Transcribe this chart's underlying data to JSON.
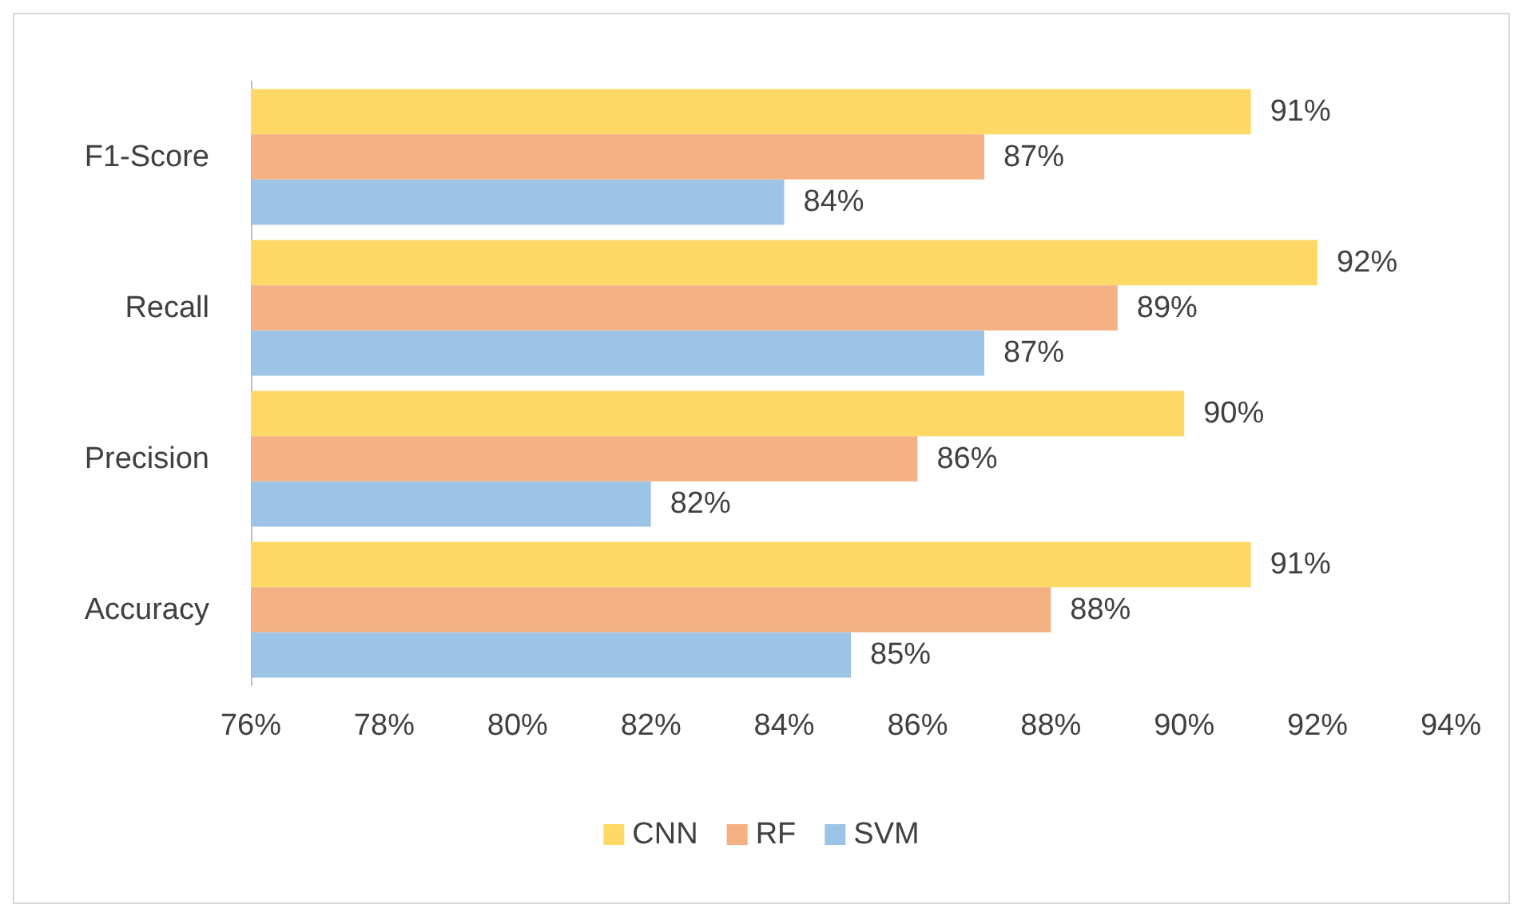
{
  "chart_data": {
    "type": "bar",
    "orientation": "horizontal",
    "categories": [
      "F1-Score",
      "Recall",
      "Precision",
      "Accuracy"
    ],
    "series": [
      {
        "name": "CNN",
        "color": "#ffd966",
        "values": [
          91,
          92,
          90,
          91
        ],
        "value_labels": [
          "91%",
          "92%",
          "90%",
          "91%"
        ]
      },
      {
        "name": "RF",
        "color": "#f4b183",
        "values": [
          87,
          89,
          86,
          88
        ],
        "value_labels": [
          "87%",
          "89%",
          "86%",
          "88%"
        ]
      },
      {
        "name": "SVM",
        "color": "#9dc3e6",
        "values": [
          84,
          87,
          82,
          85
        ],
        "value_labels": [
          "84%",
          "87%",
          "82%",
          "85%"
        ]
      }
    ],
    "xlim": [
      76,
      94
    ],
    "xticks": [
      {
        "value": 76,
        "label": "76%"
      },
      {
        "value": 78,
        "label": "78%"
      },
      {
        "value": 80,
        "label": "80%"
      },
      {
        "value": 82,
        "label": "82%"
      },
      {
        "value": 84,
        "label": "84%"
      },
      {
        "value": 86,
        "label": "86%"
      },
      {
        "value": 88,
        "label": "88%"
      },
      {
        "value": 90,
        "label": "90%"
      },
      {
        "value": 92,
        "label": "92%"
      },
      {
        "value": 94,
        "label": "94%"
      }
    ],
    "legend": "bottom"
  }
}
